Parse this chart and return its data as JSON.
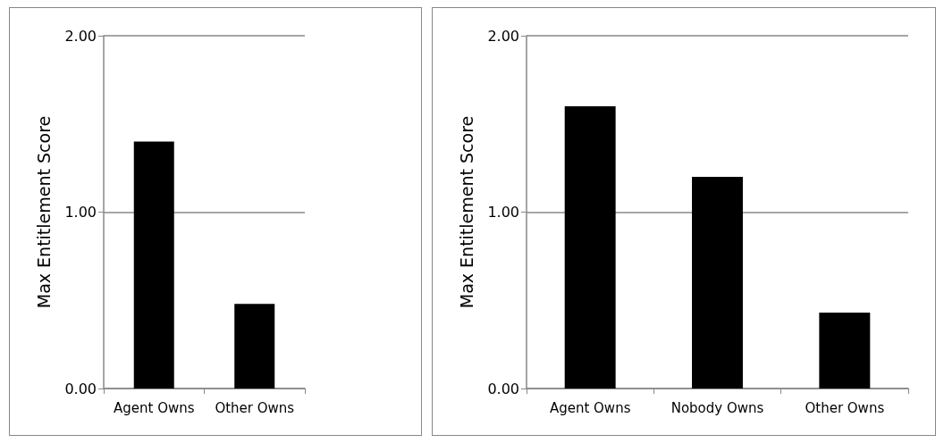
{
  "chart_data": [
    {
      "type": "bar",
      "ylabel": "Max Entitlement Score",
      "categories": [
        "Agent Owns",
        "Other Owns"
      ],
      "values": [
        1.4,
        0.48
      ],
      "color": "#000000",
      "ylim": [
        0,
        2
      ],
      "yticks": [
        {
          "value": 0,
          "label": "0.00"
        },
        {
          "value": 1,
          "label": "1.00"
        },
        {
          "value": 2,
          "label": "2.00"
        }
      ],
      "grid": "y"
    },
    {
      "type": "bar",
      "ylabel": "Max Entitlement Score",
      "categories": [
        "Agent Owns",
        "Nobody Owns",
        "Other Owns"
      ],
      "values": [
        1.6,
        1.2,
        0.43
      ],
      "color": "#000000",
      "ylim": [
        0,
        2
      ],
      "yticks": [
        {
          "value": 0,
          "label": "0.00"
        },
        {
          "value": 1,
          "label": "1.00"
        },
        {
          "value": 2,
          "label": "2.00"
        }
      ],
      "grid": "y"
    }
  ]
}
